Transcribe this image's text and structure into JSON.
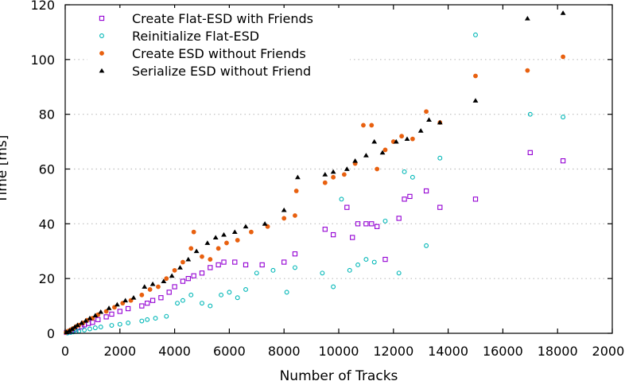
{
  "chart_data": {
    "type": "scatter",
    "title": "",
    "xlabel": "Number of Tracks",
    "ylabel": "Time [ms]",
    "xlim": [
      0,
      20000
    ],
    "ylim": [
      0,
      120
    ],
    "x_ticks": [
      0,
      2000,
      4000,
      6000,
      8000,
      10000,
      12000,
      14000,
      16000,
      18000,
      20000
    ],
    "y_ticks": [
      0,
      20,
      40,
      60,
      80,
      100,
      120
    ],
    "grid": "horizontal dotted",
    "legend_position": "top-left",
    "series": [
      {
        "name": "Create Flat-ESD with Friends",
        "color": "#9400d3",
        "marker": "open-square",
        "points": [
          [
            50,
            0.3
          ],
          [
            150,
            0.6
          ],
          [
            250,
            1
          ],
          [
            350,
            1.4
          ],
          [
            450,
            2
          ],
          [
            600,
            2.4
          ],
          [
            700,
            3.1
          ],
          [
            850,
            3.6
          ],
          [
            1000,
            4
          ],
          [
            1200,
            5
          ],
          [
            1500,
            6
          ],
          [
            1700,
            7
          ],
          [
            2000,
            8
          ],
          [
            2300,
            9
          ],
          [
            2800,
            10
          ],
          [
            3000,
            11
          ],
          [
            3200,
            12
          ],
          [
            3500,
            13
          ],
          [
            3800,
            15
          ],
          [
            4000,
            17
          ],
          [
            4300,
            19
          ],
          [
            4500,
            20
          ],
          [
            4700,
            21
          ],
          [
            5000,
            22
          ],
          [
            5300,
            24
          ],
          [
            5600,
            25
          ],
          [
            5800,
            26
          ],
          [
            6200,
            26
          ],
          [
            6600,
            25
          ],
          [
            7200,
            25
          ],
          [
            8000,
            26
          ],
          [
            8400,
            29
          ],
          [
            9500,
            38
          ],
          [
            9800,
            36
          ],
          [
            10300,
            46
          ],
          [
            10500,
            35
          ],
          [
            10700,
            40
          ],
          [
            11000,
            40
          ],
          [
            11200,
            40
          ],
          [
            11400,
            39
          ],
          [
            11700,
            27
          ],
          [
            12200,
            42
          ],
          [
            12400,
            49
          ],
          [
            12600,
            50
          ],
          [
            13200,
            52
          ],
          [
            13700,
            46
          ],
          [
            15000,
            49
          ],
          [
            17000,
            66
          ],
          [
            18200,
            63
          ]
        ]
      },
      {
        "name": "Reinitialize Flat-ESD",
        "color": "#00b7b7",
        "marker": "open-circle",
        "points": [
          [
            80,
            0.1
          ],
          [
            200,
            0.3
          ],
          [
            300,
            0.5
          ],
          [
            400,
            0.6
          ],
          [
            500,
            0.8
          ],
          [
            700,
            1.2
          ],
          [
            900,
            1.6
          ],
          [
            1100,
            2
          ],
          [
            1300,
            2.3
          ],
          [
            1700,
            2.9
          ],
          [
            2000,
            3.3
          ],
          [
            2300,
            3.8
          ],
          [
            2800,
            4.5
          ],
          [
            3000,
            5
          ],
          [
            3300,
            5.5
          ],
          [
            3700,
            6.2
          ],
          [
            4100,
            11
          ],
          [
            4300,
            12
          ],
          [
            4600,
            14
          ],
          [
            5000,
            11
          ],
          [
            5300,
            10
          ],
          [
            5700,
            14
          ],
          [
            6000,
            15
          ],
          [
            6300,
            13
          ],
          [
            6600,
            16
          ],
          [
            7000,
            22
          ],
          [
            7600,
            23
          ],
          [
            8100,
            15
          ],
          [
            8400,
            24
          ],
          [
            9400,
            22
          ],
          [
            9800,
            17
          ],
          [
            10100,
            49
          ],
          [
            10400,
            23
          ],
          [
            10700,
            25
          ],
          [
            11000,
            27
          ],
          [
            11300,
            26
          ],
          [
            11700,
            41
          ],
          [
            12200,
            22
          ],
          [
            12400,
            59
          ],
          [
            12700,
            57
          ],
          [
            13200,
            32
          ],
          [
            13700,
            64
          ],
          [
            15000,
            109
          ],
          [
            17000,
            80
          ],
          [
            18200,
            79
          ]
        ]
      },
      {
        "name": "Create ESD without Friends",
        "color": "#e8600f",
        "marker": "filled-circle",
        "points": [
          [
            30,
            0.3
          ],
          [
            100,
            0.8
          ],
          [
            200,
            1.3
          ],
          [
            300,
            1.8
          ],
          [
            400,
            2.5
          ],
          [
            500,
            3
          ],
          [
            650,
            3.8
          ],
          [
            800,
            4.8
          ],
          [
            1000,
            5.5
          ],
          [
            1200,
            6.8
          ],
          [
            1500,
            8
          ],
          [
            1800,
            9.5
          ],
          [
            2100,
            11
          ],
          [
            2400,
            12
          ],
          [
            2800,
            14
          ],
          [
            3100,
            16
          ],
          [
            3400,
            17
          ],
          [
            3700,
            20
          ],
          [
            4000,
            23
          ],
          [
            4300,
            26
          ],
          [
            4600,
            31
          ],
          [
            4700,
            37
          ],
          [
            5000,
            28
          ],
          [
            5300,
            27
          ],
          [
            5600,
            31
          ],
          [
            5900,
            33
          ],
          [
            6300,
            34
          ],
          [
            6800,
            37
          ],
          [
            7400,
            39
          ],
          [
            8000,
            42
          ],
          [
            8400,
            43
          ],
          [
            8450,
            52
          ],
          [
            9500,
            55
          ],
          [
            9800,
            57
          ],
          [
            10200,
            58
          ],
          [
            10600,
            62
          ],
          [
            10900,
            76
          ],
          [
            11200,
            76
          ],
          [
            11400,
            60
          ],
          [
            11700,
            67
          ],
          [
            12000,
            70
          ],
          [
            12300,
            72
          ],
          [
            12700,
            71
          ],
          [
            13200,
            81
          ],
          [
            13700,
            77
          ],
          [
            15000,
            94
          ],
          [
            16900,
            96
          ],
          [
            18200,
            101
          ]
        ]
      },
      {
        "name": "Serialize ESD without Friend",
        "color": "#000000",
        "marker": "filled-triangle",
        "points": [
          [
            50,
            0.4
          ],
          [
            150,
            1
          ],
          [
            250,
            1.6
          ],
          [
            350,
            2.3
          ],
          [
            450,
            3
          ],
          [
            600,
            3.8
          ],
          [
            750,
            4.6
          ],
          [
            900,
            5.5
          ],
          [
            1100,
            6.5
          ],
          [
            1300,
            7.8
          ],
          [
            1600,
            9.2
          ],
          [
            1900,
            10.5
          ],
          [
            2200,
            12
          ],
          [
            2500,
            13
          ],
          [
            2900,
            17
          ],
          [
            3200,
            18
          ],
          [
            3600,
            19
          ],
          [
            3900,
            21
          ],
          [
            4200,
            24
          ],
          [
            4500,
            27
          ],
          [
            4800,
            30
          ],
          [
            5200,
            33
          ],
          [
            5500,
            35
          ],
          [
            5800,
            36
          ],
          [
            6200,
            37
          ],
          [
            6600,
            39
          ],
          [
            7300,
            40
          ],
          [
            8000,
            45
          ],
          [
            8500,
            57
          ],
          [
            9500,
            58
          ],
          [
            9800,
            59
          ],
          [
            10300,
            60
          ],
          [
            10600,
            63
          ],
          [
            11000,
            65
          ],
          [
            11300,
            70
          ],
          [
            11600,
            66
          ],
          [
            12100,
            70
          ],
          [
            12500,
            71
          ],
          [
            13000,
            74
          ],
          [
            13300,
            78
          ],
          [
            13700,
            77
          ],
          [
            15000,
            85
          ],
          [
            16900,
            115
          ],
          [
            18200,
            117
          ]
        ]
      }
    ]
  }
}
